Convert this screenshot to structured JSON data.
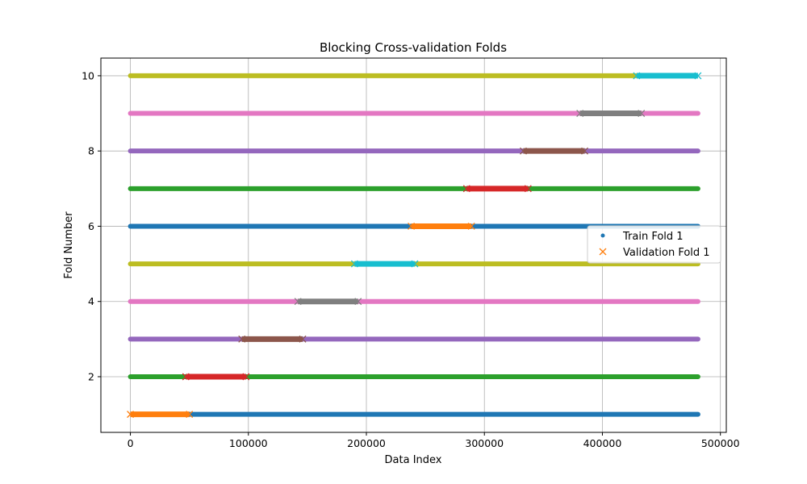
{
  "chart_data": {
    "type": "scatter",
    "title": "Blocking Cross-validation Folds",
    "xlabel": "Data Index",
    "ylabel": "Fold Number",
    "xlim": [
      -25000,
      505000
    ],
    "ylim": [
      0.52,
      10.47
    ],
    "xticks": [
      0,
      100000,
      200000,
      300000,
      400000,
      500000
    ],
    "xtick_labels": [
      "0",
      "100000",
      "200000",
      "300000",
      "400000",
      "500000"
    ],
    "yticks": [
      2,
      4,
      6,
      8,
      10
    ],
    "ytick_labels": [
      "2",
      "4",
      "6",
      "8",
      "10"
    ],
    "grid": true,
    "legend": {
      "placement": "center-right",
      "entries": [
        {
          "label": "Train Fold 1",
          "marker": "dot",
          "color": "#1f77b4"
        },
        {
          "label": "Validation Fold 1",
          "marker": "x",
          "color": "#ff7f0e"
        }
      ]
    },
    "data_range": [
      0,
      481000
    ],
    "folds": [
      {
        "fold": 1,
        "train_color": "#1f77b4",
        "val_color": "#ff7f0e",
        "val_range": [
          0,
          50000
        ]
      },
      {
        "fold": 2,
        "train_color": "#2ca02c",
        "val_color": "#d62728",
        "val_range": [
          47000,
          98000
        ]
      },
      {
        "fold": 3,
        "train_color": "#9467bd",
        "val_color": "#8c564b",
        "val_range": [
          94500,
          146000
        ]
      },
      {
        "fold": 4,
        "train_color": "#e377c2",
        "val_color": "#7f7f7f",
        "val_range": [
          142000,
          193000
        ]
      },
      {
        "fold": 5,
        "train_color": "#bcbd22",
        "val_color": "#17becf",
        "val_range": [
          190000,
          241000
        ]
      },
      {
        "fold": 6,
        "train_color": "#1f77b4",
        "val_color": "#ff7f0e",
        "val_range": [
          238000,
          289000
        ]
      },
      {
        "fold": 7,
        "train_color": "#2ca02c",
        "val_color": "#d62728",
        "val_range": [
          285000,
          337000
        ]
      },
      {
        "fold": 8,
        "train_color": "#9467bd",
        "val_color": "#8c564b",
        "val_range": [
          333000,
          385000
        ]
      },
      {
        "fold": 9,
        "train_color": "#e377c2",
        "val_color": "#7f7f7f",
        "val_range": [
          381000,
          433000
        ]
      },
      {
        "fold": 10,
        "train_color": "#bcbd22",
        "val_color": "#17becf",
        "val_range": [
          429000,
          481000
        ]
      }
    ]
  }
}
